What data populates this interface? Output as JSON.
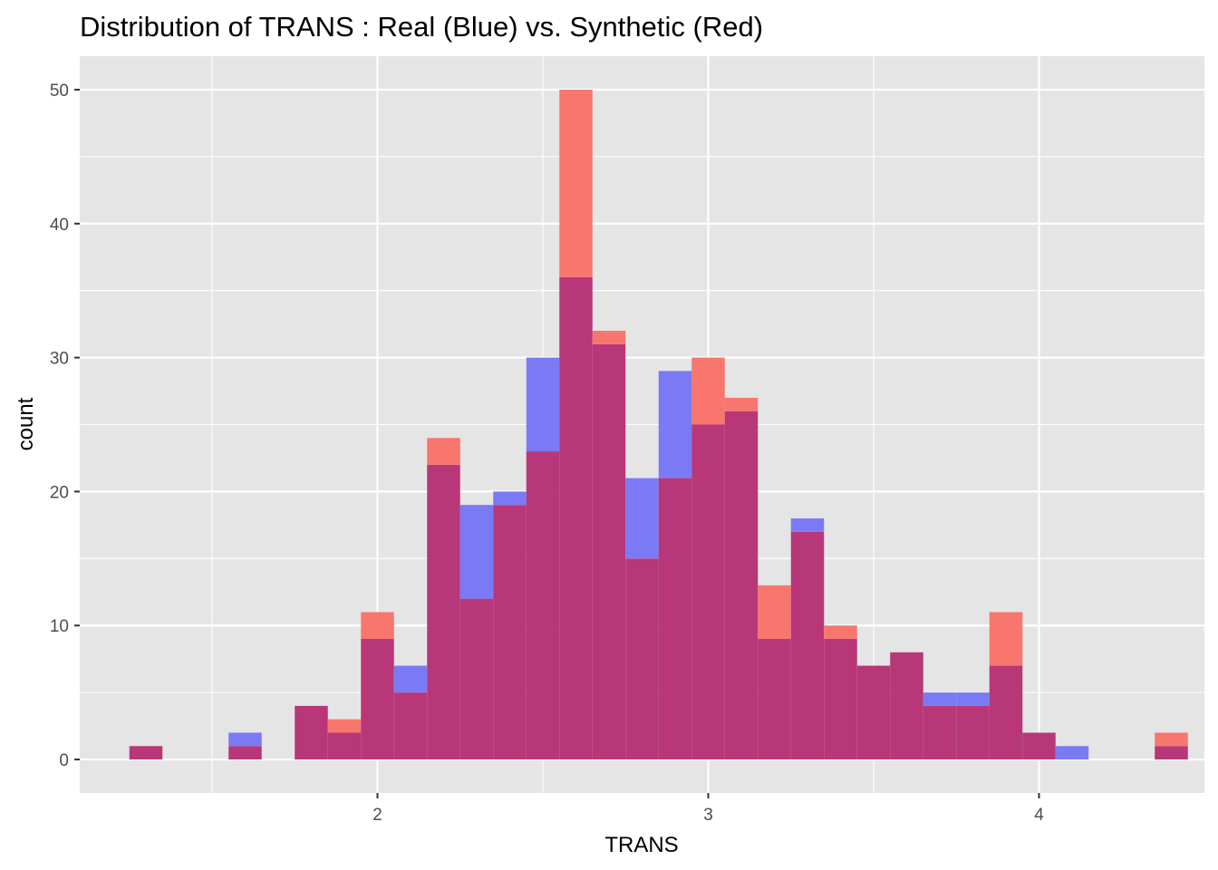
{
  "chart_data": {
    "type": "bar",
    "title": "Distribution of TRANS : Real (Blue) vs. Synthetic (Red)",
    "xlabel": "TRANS",
    "ylabel": "count",
    "bin_width": 0.1,
    "xlim": [
      1.1,
      4.5
    ],
    "ylim": [
      -2.5,
      52.5
    ],
    "x_ticks": [
      2,
      3,
      4
    ],
    "y_ticks": [
      0,
      10,
      20,
      30,
      40,
      50
    ],
    "grid": true,
    "legend": "none",
    "bin_centers": [
      1.3,
      1.4,
      1.5,
      1.6,
      1.7,
      1.8,
      1.9,
      2.0,
      2.1,
      2.2,
      2.3,
      2.4,
      2.5,
      2.6,
      2.7,
      2.8,
      2.9,
      3.0,
      3.1,
      3.2,
      3.3,
      3.4,
      3.5,
      3.6,
      3.7,
      3.8,
      3.9,
      4.0,
      4.1,
      4.2,
      4.3,
      4.4
    ],
    "series": [
      {
        "color": "#0000ff",
        "opacity": 0.5,
        "values": [
          1,
          0,
          0,
          2,
          0,
          4,
          2,
          9,
          7,
          22,
          19,
          20,
          30,
          36,
          31,
          21,
          29,
          25,
          26,
          9,
          18,
          9,
          7,
          8,
          5,
          5,
          7,
          2,
          1,
          0,
          0,
          1
        ]
      },
      {
        "color": "#f8766d",
        "opacity": 1,
        "values": [
          1,
          0,
          0,
          1,
          0,
          4,
          3,
          11,
          5,
          24,
          12,
          19,
          23,
          50,
          32,
          15,
          21,
          30,
          27,
          13,
          17,
          10,
          7,
          8,
          4,
          4,
          11,
          2,
          0,
          0,
          0,
          2
        ]
      }
    ],
    "overlap_color": "#b73779"
  }
}
